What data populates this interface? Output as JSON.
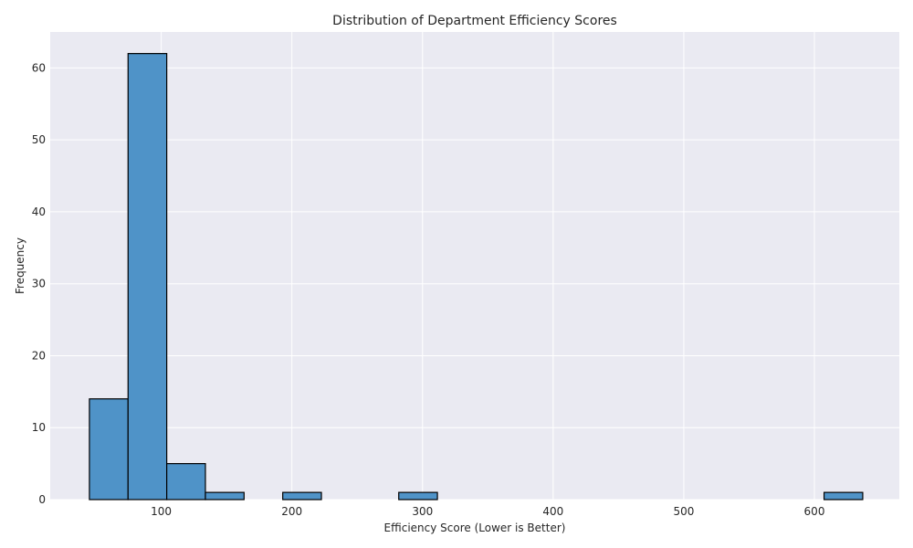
{
  "chart_data": {
    "type": "bar",
    "title": "Distribution of Department Efficiency Scores",
    "xlabel": "Efficiency Score (Lower is Better)",
    "ylabel": "Frequency",
    "xlim": [
      15,
      665
    ],
    "ylim": [
      0,
      65
    ],
    "xticks": [
      100,
      200,
      300,
      400,
      500,
      600
    ],
    "yticks": [
      0,
      10,
      20,
      30,
      40,
      50,
      60
    ],
    "grid": true,
    "bins": [
      {
        "start": 45,
        "end": 74.6,
        "count": 14
      },
      {
        "start": 74.6,
        "end": 104.2,
        "count": 62
      },
      {
        "start": 104.2,
        "end": 133.8,
        "count": 5
      },
      {
        "start": 133.8,
        "end": 163.4,
        "count": 1
      },
      {
        "start": 163.4,
        "end": 193.0,
        "count": 0
      },
      {
        "start": 193.0,
        "end": 222.6,
        "count": 1
      },
      {
        "start": 222.6,
        "end": 252.2,
        "count": 0
      },
      {
        "start": 252.2,
        "end": 281.8,
        "count": 0
      },
      {
        "start": 281.8,
        "end": 311.4,
        "count": 1
      },
      {
        "start": 311.4,
        "end": 341.0,
        "count": 0
      },
      {
        "start": 341.0,
        "end": 370.6,
        "count": 0
      },
      {
        "start": 370.6,
        "end": 400.2,
        "count": 0
      },
      {
        "start": 400.2,
        "end": 429.8,
        "count": 0
      },
      {
        "start": 429.8,
        "end": 459.4,
        "count": 0
      },
      {
        "start": 459.4,
        "end": 489.0,
        "count": 0
      },
      {
        "start": 489.0,
        "end": 518.6,
        "count": 0
      },
      {
        "start": 518.6,
        "end": 548.2,
        "count": 0
      },
      {
        "start": 548.2,
        "end": 577.8,
        "count": 0
      },
      {
        "start": 577.8,
        "end": 607.4,
        "count": 0
      },
      {
        "start": 607.4,
        "end": 637.0,
        "count": 1
      }
    ],
    "colors": {
      "bar": "#4f93c8",
      "edge": "#000000",
      "background": "#eaeaf2",
      "grid": "#ffffff"
    }
  }
}
